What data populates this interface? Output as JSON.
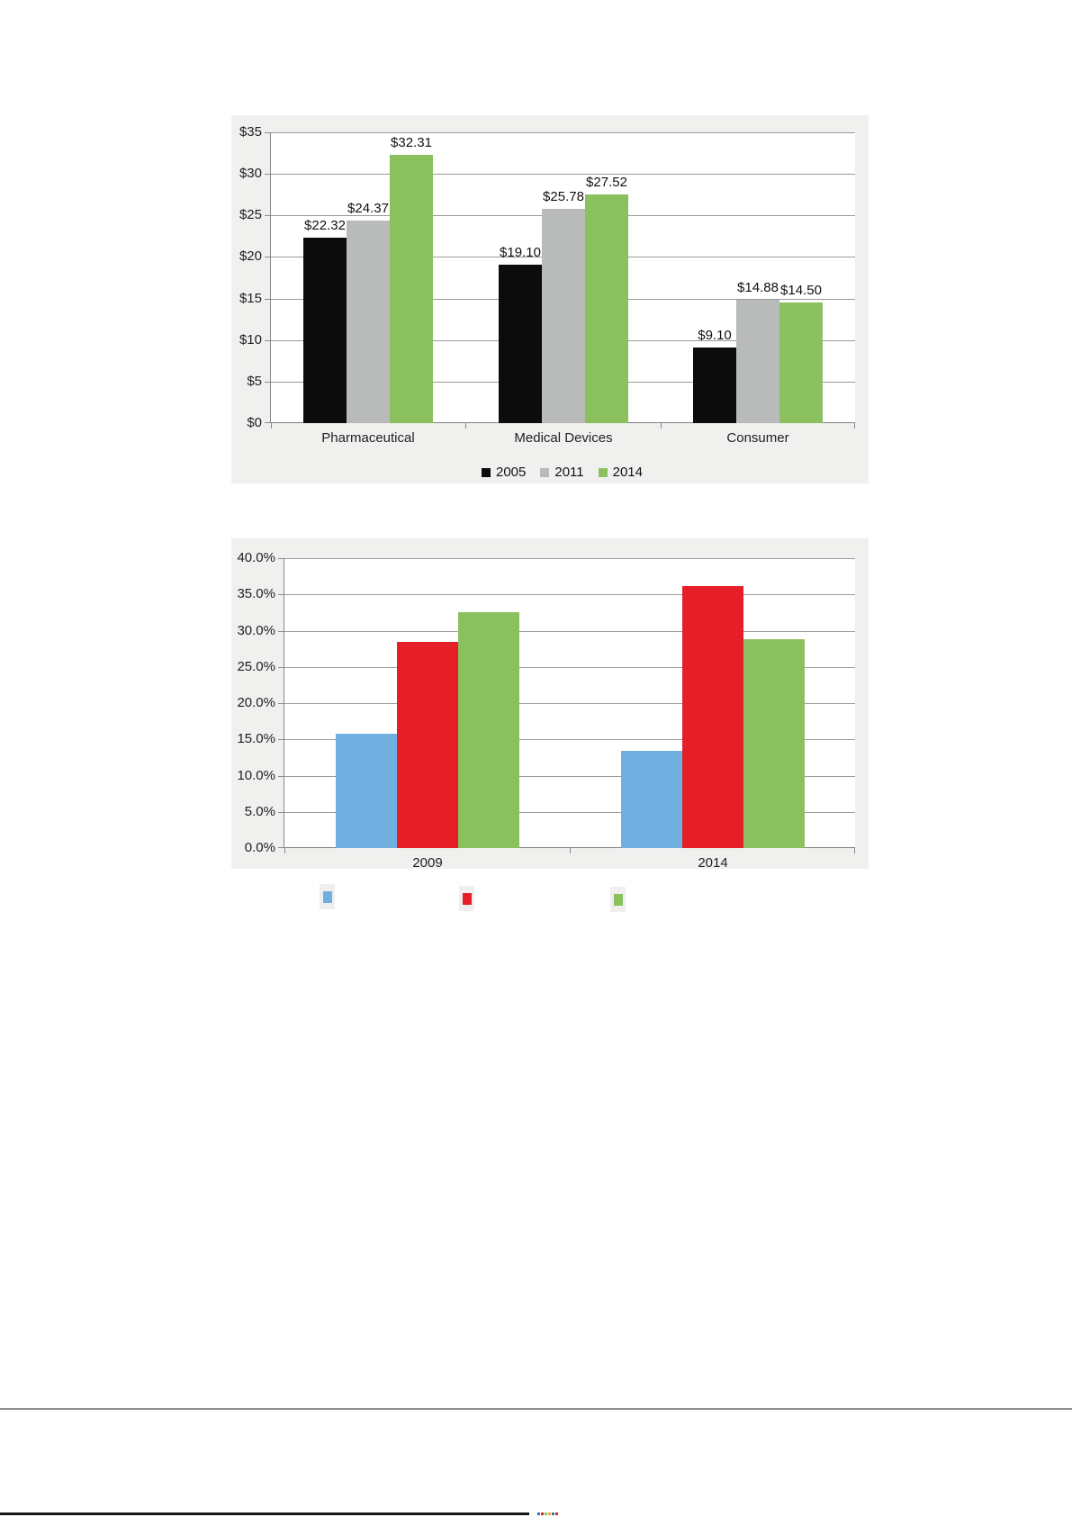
{
  "chart_data": [
    {
      "type": "bar",
      "title": "",
      "categories": [
        "Pharmaceutical",
        "Medical Devices",
        "Consumer"
      ],
      "series": [
        {
          "name": "2005",
          "color": "#0c0c0c",
          "values": [
            22.32,
            19.1,
            9.1
          ]
        },
        {
          "name": "2011",
          "color": "#b9baba",
          "values": [
            24.37,
            25.78,
            14.88
          ]
        },
        {
          "name": "2014",
          "color": "#8bc05e",
          "values": [
            32.31,
            27.52,
            14.5
          ]
        }
      ],
      "value_labels": [
        [
          "$22.32",
          "$19.10",
          "$9.10"
        ],
        [
          "$24.37",
          "$25.78",
          "$14.88"
        ],
        [
          "$32.31",
          "$27.52",
          "$14.50"
        ]
      ],
      "y_ticks": [
        "$35",
        "$30",
        "$25",
        "$20",
        "$15",
        "$10",
        "$5",
        "$0"
      ],
      "ylim": [
        0,
        35
      ],
      "grid": true,
      "legend_position": "bottom",
      "legend_items": [
        {
          "label": "2005",
          "color": "#0c0c0c"
        },
        {
          "label": "2011",
          "color": "#b9baba"
        },
        {
          "label": "2014",
          "color": "#8bc05e"
        }
      ]
    },
    {
      "type": "bar",
      "title": "",
      "categories": [
        "2009",
        "2014"
      ],
      "series": [
        {
          "name": "",
          "color": "#6fb0e0",
          "values": [
            15.8,
            13.4
          ]
        },
        {
          "name": "",
          "color": "#e61e28",
          "values": [
            28.5,
            36.1
          ]
        },
        {
          "name": "",
          "color": "#8bc05e",
          "values": [
            32.5,
            28.8
          ]
        }
      ],
      "value_labels": null,
      "y_ticks": [
        "40.0%",
        "35.0%",
        "30.0%",
        "25.0%",
        "20.0%",
        "15.0%",
        "10.0%",
        "5.0%",
        "0.0%"
      ],
      "ylim": [
        0,
        40
      ],
      "grid": true,
      "legend_position": "bottom-chips-no-text"
    }
  ],
  "legend2_chips": {
    "colors": [
      "#6fb0e0",
      "#e61e28",
      "#8bc05e"
    ]
  },
  "bottom_strip": {
    "black_bar_color": "#151515",
    "dash_colors": [
      "#3a6fb0",
      "#e02128",
      "#8bc05e",
      "#e8a33d",
      "#3a6fb0",
      "#e02128"
    ]
  },
  "colors": {
    "panel_background": "#f0f0ef",
    "plot_background": "#ffffff",
    "gridline": "#9a9a9a",
    "footer_rule": "#8f8f8f"
  }
}
